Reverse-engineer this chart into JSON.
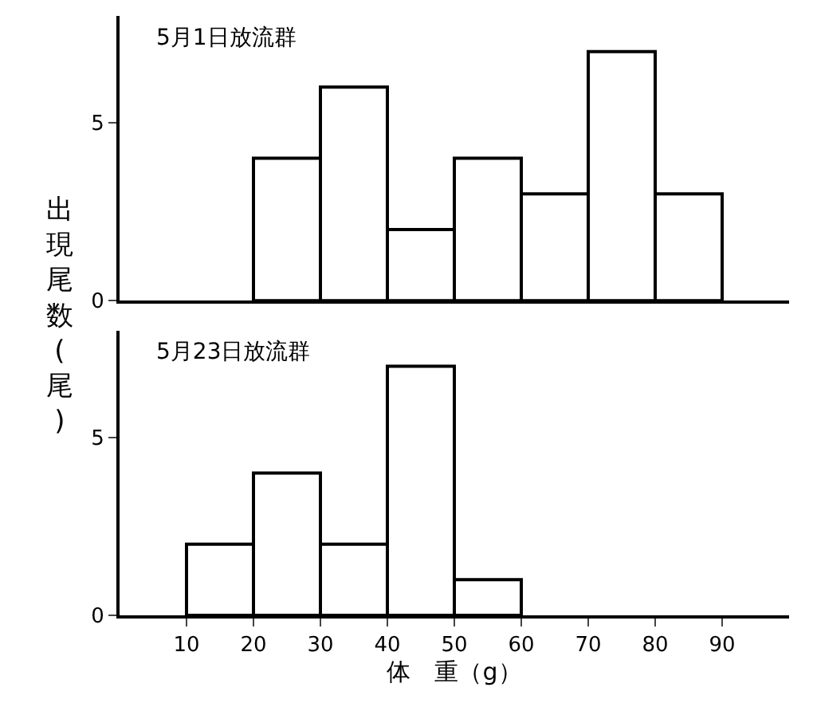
{
  "chart_data": [
    {
      "type": "histogram",
      "title": "5月1日放流群",
      "ylabel": "出現尾数(尾)",
      "bins": [
        20,
        30,
        40,
        50,
        60,
        70,
        80,
        90
      ],
      "values": [
        4,
        6,
        2,
        4,
        3,
        7,
        3
      ],
      "color": "#000000",
      "xlim": [
        0,
        100
      ],
      "xticks": [
        10,
        20,
        30,
        40,
        50,
        60,
        70,
        80,
        90
      ],
      "ylim": [
        0,
        8
      ],
      "yticks": [
        0,
        5
      ],
      "tick_labels": "y"
    },
    {
      "type": "histogram",
      "title": "5月23日放流群",
      "xlabel": "体　重（g）",
      "bins": [
        10,
        20,
        30,
        40,
        50,
        60
      ],
      "values": [
        2,
        4,
        2,
        7,
        1
      ],
      "color": "#000000",
      "xlim": [
        0,
        100
      ],
      "xticks": [
        10,
        20,
        30,
        40,
        50,
        60,
        70,
        80,
        90
      ],
      "ylim": [
        0,
        8
      ],
      "yticks": [
        0,
        5
      ]
    }
  ]
}
